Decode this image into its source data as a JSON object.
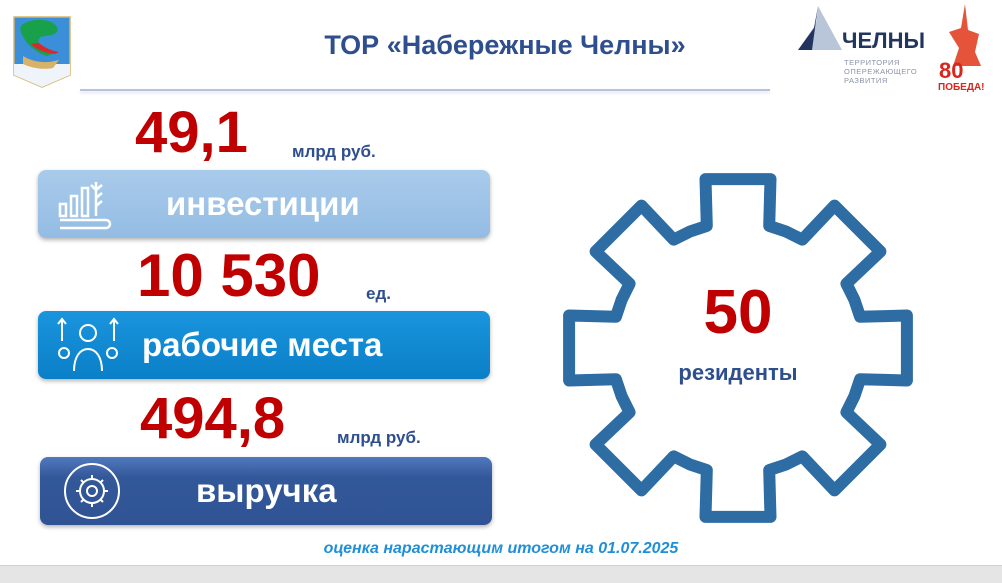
{
  "header": {
    "title": "ТОР «Набережные Челны»",
    "logo_right_text": "ЧЕЛНЫ",
    "logo_right_subtitle": "ТЕРРИТОРИЯ ОПЕРЕЖАЮЩЕГО РАЗВИТИЯ",
    "victory_badge": "80 ПОБЕДА!"
  },
  "metrics": [
    {
      "value": "49,1",
      "unit": "млрд руб.",
      "label": "инвестиции",
      "icon": "bar-chart-wheat-icon",
      "color": "#9dc3e6"
    },
    {
      "value": "10 530",
      "unit": "ед.",
      "label": "рабочие места",
      "icon": "worker-gears-icon",
      "color": "#0a86d1"
    },
    {
      "value": "494,8",
      "unit": "млрд руб.",
      "label": "выручка",
      "icon": "gear-cycle-icon",
      "color": "#33589a"
    }
  ],
  "residents": {
    "value": "50",
    "label": "резиденты",
    "gear_color": "#2e6da4"
  },
  "footer": {
    "note": "оценка нарастающим итогом на 01.07.2025"
  },
  "colors": {
    "value_red": "#c00000",
    "title_blue": "#2e4e8e"
  }
}
